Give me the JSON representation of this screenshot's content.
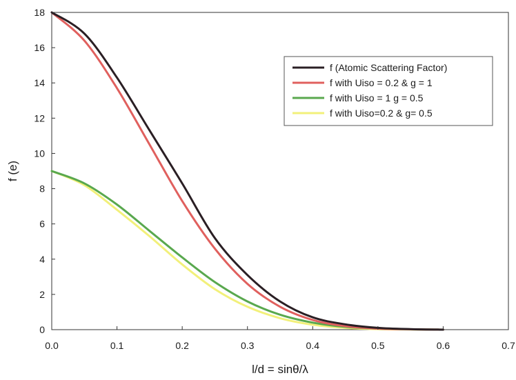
{
  "chart_data": {
    "type": "line",
    "title": "",
    "xlabel": "l/d = sinθ/λ",
    "ylabel": "f (e)",
    "xlim": [
      0,
      0.7
    ],
    "ylim": [
      0,
      18
    ],
    "x_ticks": [
      "0.0",
      "0.1",
      "0.2",
      "0.3",
      "0.4",
      "0.5",
      "0.6",
      "0.7"
    ],
    "y_ticks": [
      "0",
      "2",
      "4",
      "6",
      "8",
      "10",
      "12",
      "14",
      "16",
      "18"
    ],
    "grid": false,
    "legend_position": "top-right",
    "x": [
      0,
      0.05,
      0.1,
      0.15,
      0.2,
      0.25,
      0.3,
      0.35,
      0.4,
      0.45,
      0.5,
      0.55,
      0.6
    ],
    "series": [
      {
        "name": "f  (Atomic Scattering Factor)",
        "color": "#2a1f24",
        "values": [
          18,
          16.8,
          14.3,
          11.3,
          8.3,
          5.2,
          3.1,
          1.6,
          0.7,
          0.3,
          0.1,
          0.03,
          0
        ]
      },
      {
        "name": "f with Uiso = 0.2 & g = 1",
        "color": "#e0605e",
        "values": [
          18,
          16.4,
          13.7,
          10.5,
          7.3,
          4.6,
          2.6,
          1.3,
          0.55,
          0.2,
          0.06,
          0.02,
          0
        ]
      },
      {
        "name": "f with Uiso = 1 g = 0.5",
        "color": "#59a84e",
        "values": [
          9,
          8.3,
          7.1,
          5.6,
          4.1,
          2.7,
          1.6,
          0.85,
          0.4,
          0.16,
          0.06,
          0.02,
          0
        ]
      },
      {
        "name": "f with Uiso=0.2 & g= 0.5",
        "color": "#f2f07a",
        "values": [
          9,
          8.2,
          6.8,
          5.3,
          3.7,
          2.3,
          1.3,
          0.65,
          0.28,
          0.1,
          0.03,
          0.01,
          0
        ]
      }
    ]
  }
}
